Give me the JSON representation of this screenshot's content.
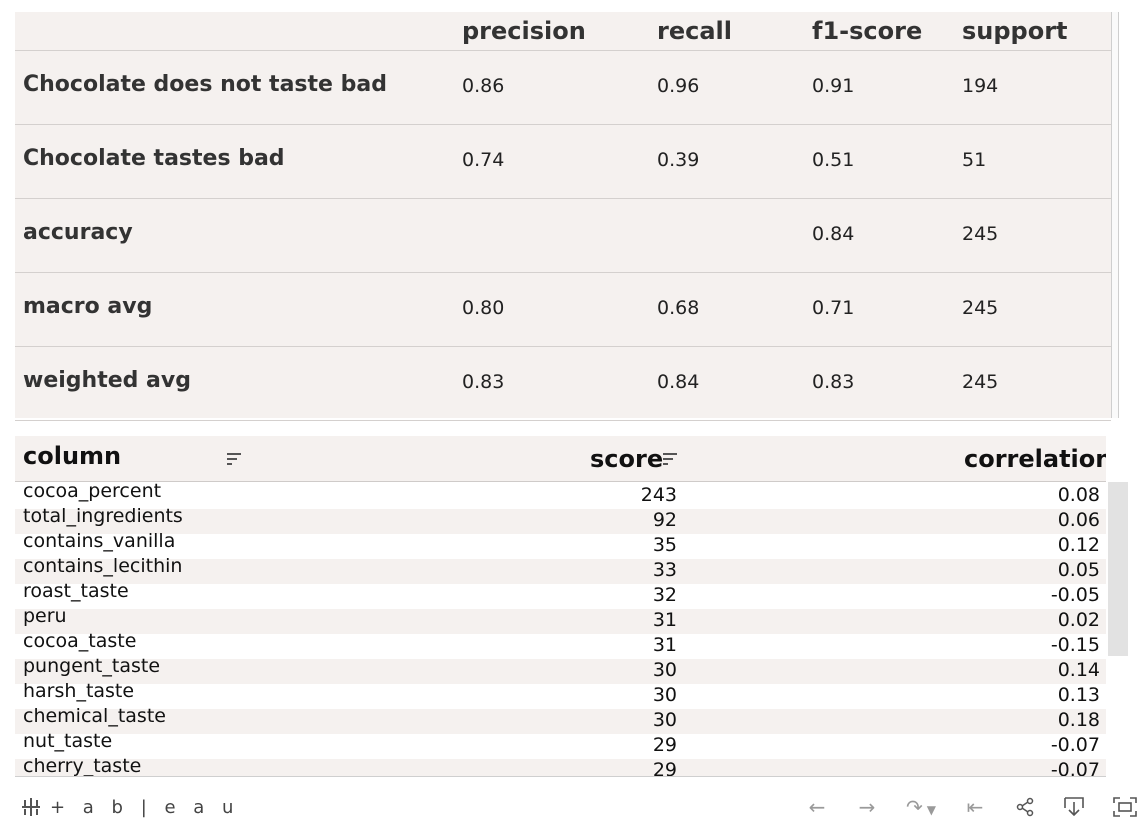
{
  "report": {
    "headers": [
      "precision",
      "recall",
      "f1-score",
      "support"
    ],
    "rows": [
      {
        "label": "Chocolate does not taste bad",
        "precision": "0.86",
        "recall": "0.96",
        "f1": "0.91",
        "support": "194"
      },
      {
        "label": "Chocolate tastes bad",
        "precision": "0.74",
        "recall": "0.39",
        "f1": "0.51",
        "support": "51"
      },
      {
        "label": "accuracy",
        "precision": "",
        "recall": "",
        "f1": "0.84",
        "support": "245"
      },
      {
        "label": "macro avg",
        "precision": "0.80",
        "recall": "0.68",
        "f1": "0.71",
        "support": "245"
      },
      {
        "label": "weighted avg",
        "precision": "0.83",
        "recall": "0.84",
        "f1": "0.83",
        "support": "245"
      }
    ]
  },
  "features": {
    "headers": {
      "column": "column",
      "score": "score",
      "correlation": "correlation"
    },
    "rows": [
      {
        "column": "cocoa_percent",
        "score": "243",
        "correlation": "0.08"
      },
      {
        "column": "total_ingredients",
        "score": "92",
        "correlation": "0.06"
      },
      {
        "column": "contains_vanilla",
        "score": "35",
        "correlation": "0.12"
      },
      {
        "column": "contains_lecithin",
        "score": "33",
        "correlation": "0.05"
      },
      {
        "column": "roast_taste",
        "score": "32",
        "correlation": "-0.05"
      },
      {
        "column": "peru",
        "score": "31",
        "correlation": "0.02"
      },
      {
        "column": "cocoa_taste",
        "score": "31",
        "correlation": "-0.15"
      },
      {
        "column": "pungent_taste",
        "score": "30",
        "correlation": "0.14"
      },
      {
        "column": "harsh_taste",
        "score": "30",
        "correlation": "0.13"
      },
      {
        "column": "chemical_taste",
        "score": "30",
        "correlation": "0.18"
      },
      {
        "column": "nut_taste",
        "score": "29",
        "correlation": "-0.07"
      },
      {
        "column": "cherry_taste",
        "score": "29",
        "correlation": "-0.07"
      }
    ]
  },
  "toolbar": {
    "logo_text": "+ a b | e a u",
    "icons": [
      "undo-icon",
      "redo-icon",
      "revert-icon",
      "reset-icon",
      "share-icon",
      "download-icon",
      "fullscreen-icon"
    ]
  }
}
